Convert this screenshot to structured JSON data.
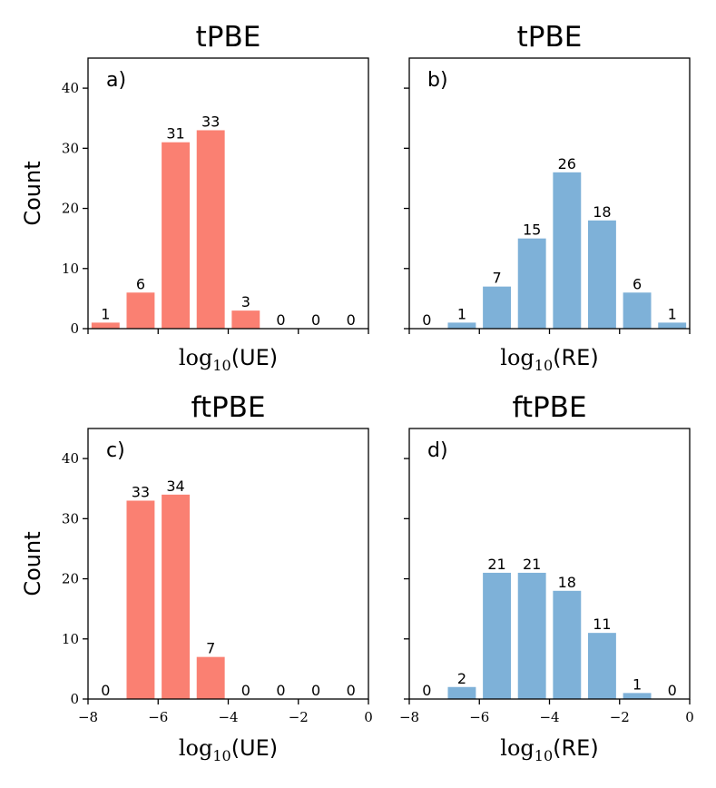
{
  "chart_data": [
    {
      "id": "a",
      "type": "bar",
      "title": "tPBE",
      "panel_label": "a)",
      "ylabel": "Count",
      "xlabel_base": "log",
      "xlabel_sub": "10",
      "xlabel_arg": "(UE)",
      "color": "#fa8072",
      "xlim": [
        -8,
        0
      ],
      "ylim": [
        0,
        45
      ],
      "yticks": [
        0,
        10,
        20,
        30,
        40
      ],
      "xticks": [
        -8,
        -6,
        -4,
        -2,
        0
      ],
      "show_xtick_labels": false,
      "show_ytick_labels": true,
      "bin_edges": [
        -8,
        -7,
        -6,
        -5,
        -4,
        -3,
        -2,
        -1,
        0
      ],
      "values": [
        1,
        6,
        31,
        33,
        3,
        0,
        0,
        0
      ]
    },
    {
      "id": "b",
      "type": "bar",
      "title": "tPBE",
      "panel_label": "b)",
      "ylabel": "",
      "xlabel_base": "log",
      "xlabel_sub": "10",
      "xlabel_arg": "(RE)",
      "color": "#7eb1d8",
      "xlim": [
        -8,
        0
      ],
      "ylim": [
        0,
        45
      ],
      "yticks": [
        0,
        10,
        20,
        30,
        40
      ],
      "xticks": [
        -8,
        -6,
        -4,
        -2,
        0
      ],
      "show_xtick_labels": false,
      "show_ytick_labels": false,
      "bin_edges": [
        -8,
        -7,
        -6,
        -5,
        -4,
        -3,
        -2,
        -1,
        0
      ],
      "values": [
        0,
        1,
        7,
        15,
        26,
        18,
        6,
        1
      ]
    },
    {
      "id": "c",
      "type": "bar",
      "title": "ftPBE",
      "panel_label": "c)",
      "ylabel": "Count",
      "xlabel_base": "log",
      "xlabel_sub": "10",
      "xlabel_arg": "(UE)",
      "color": "#fa8072",
      "xlim": [
        -8,
        0
      ],
      "ylim": [
        0,
        45
      ],
      "yticks": [
        0,
        10,
        20,
        30,
        40
      ],
      "xticks": [
        -8,
        -6,
        -4,
        -2,
        0
      ],
      "show_xtick_labels": true,
      "show_ytick_labels": true,
      "bin_edges": [
        -8,
        -7,
        -6,
        -5,
        -4,
        -3,
        -2,
        -1,
        0
      ],
      "values": [
        0,
        33,
        34,
        7,
        0,
        0,
        0,
        0
      ]
    },
    {
      "id": "d",
      "type": "bar",
      "title": "ftPBE",
      "panel_label": "d)",
      "ylabel": "",
      "xlabel_base": "log",
      "xlabel_sub": "10",
      "xlabel_arg": "(RE)",
      "color": "#7eb1d8",
      "xlim": [
        -8,
        0
      ],
      "ylim": [
        0,
        45
      ],
      "yticks": [
        0,
        10,
        20,
        30,
        40
      ],
      "xticks": [
        -8,
        -6,
        -4,
        -2,
        0
      ],
      "show_xtick_labels": true,
      "show_ytick_labels": false,
      "bin_edges": [
        -8,
        -7,
        -6,
        -5,
        -4,
        -3,
        -2,
        -1,
        0
      ],
      "values": [
        0,
        2,
        21,
        21,
        18,
        11,
        1,
        0
      ]
    }
  ]
}
